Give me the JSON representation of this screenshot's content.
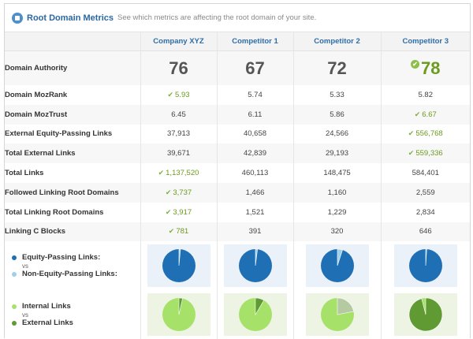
{
  "header": {
    "title": "Root Domain Metrics",
    "subtitle": "See which metrics are affecting the root domain of your site."
  },
  "columns": [
    "Company XYZ",
    "Competitor 1",
    "Competitor 2",
    "Competitor 3"
  ],
  "rows": [
    {
      "label": "Domain Authority",
      "values": [
        "76",
        "67",
        "72",
        "78"
      ],
      "winner": 3
    },
    {
      "label": "Domain MozRank",
      "values": [
        "5.93",
        "5.74",
        "5.33",
        "5.82"
      ],
      "winner": 0
    },
    {
      "label": "Domain MozTrust",
      "values": [
        "6.45",
        "6.11",
        "5.86",
        "6.67"
      ],
      "winner": 3
    },
    {
      "label": "External Equity-Passing Links",
      "values": [
        "37,913",
        "40,658",
        "24,566",
        "556,768"
      ],
      "winner": 3
    },
    {
      "label": "Total External Links",
      "values": [
        "39,671",
        "42,839",
        "29,193",
        "559,336"
      ],
      "winner": 3
    },
    {
      "label": "Total Links",
      "values": [
        "1,137,520",
        "460,113",
        "148,475",
        "584,401"
      ],
      "winner": 0
    },
    {
      "label": "Followed Linking Root Domains",
      "values": [
        "3,737",
        "1,466",
        "1,160",
        "2,559"
      ],
      "winner": 0
    },
    {
      "label": "Total Linking Root Domains",
      "values": [
        "3,917",
        "1,521",
        "1,229",
        "2,834"
      ],
      "winner": 0
    },
    {
      "label": "Linking C Blocks",
      "values": [
        "781",
        "391",
        "320",
        "646"
      ],
      "winner": 0
    }
  ],
  "pie_rows": [
    {
      "legend_a": "Equity-Passing Links:",
      "vs": "vs",
      "legend_b": "Non-Equity-Passing Links:",
      "color_a": "#1f6fb5",
      "color_b": "#9fd0ea",
      "fractions_b": [
        0.015,
        0.02,
        0.05,
        0.01
      ]
    },
    {
      "legend_a": "Internal Links",
      "vs": "vs",
      "legend_b": "External Links",
      "color_a": "#a6e26a",
      "color_b": "#5f9a33",
      "colors_b": [
        "#5f9a33",
        "#5f9a33",
        "#b5c9a2",
        "#5f9a33"
      ],
      "fractions_b": [
        0.035,
        0.085,
        0.22,
        0.96
      ]
    }
  ]
}
